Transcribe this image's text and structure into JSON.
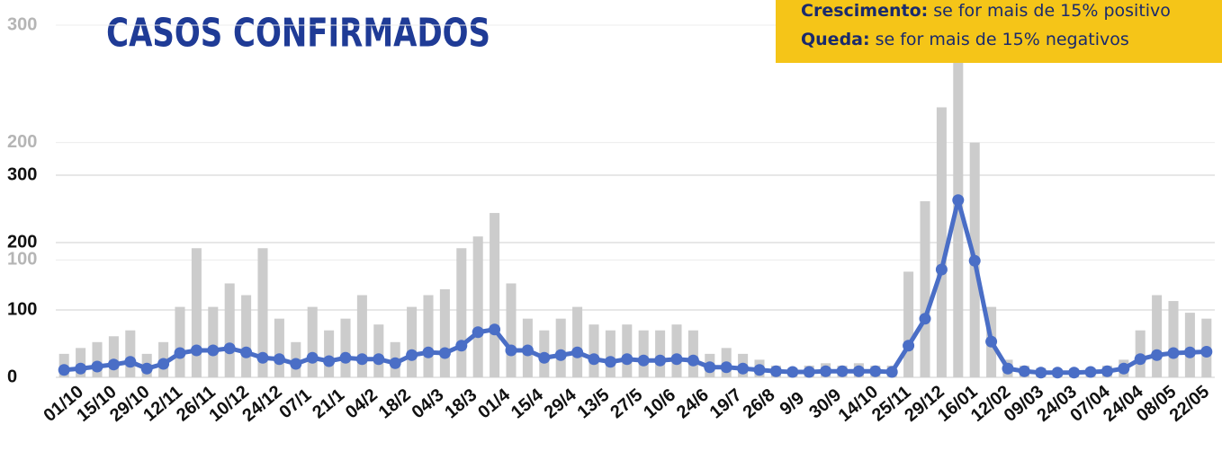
{
  "chart_data": {
    "type": "bar-line",
    "title": "CASOS CONFIRMADOS",
    "note": [
      {
        "label": "Crescimento:",
        "text": "se for mais de 15% positivo"
      },
      {
        "label": "Queda:",
        "text": "se for mais de 15% negativos"
      }
    ],
    "categories": [
      "01/10",
      null,
      "15/10",
      null,
      "29/10",
      null,
      "12/11",
      null,
      "26/11",
      null,
      "10/12",
      null,
      "24/12",
      null,
      "07/1",
      null,
      "21/1",
      null,
      "04/2",
      null,
      "18/2",
      null,
      "04/3",
      null,
      "18/3",
      null,
      "01/4",
      null,
      "15/4",
      null,
      "29/4",
      null,
      "13/5",
      null,
      "27/5",
      null,
      "10/6",
      null,
      "24/6",
      null,
      "19/7",
      null,
      "26/8",
      null,
      "9/9",
      null,
      "30/9",
      null,
      "14/10",
      null,
      "25/11",
      null,
      "29/12",
      null,
      "16/01",
      null,
      "12/02",
      null,
      "09/03",
      null,
      "24/03",
      null,
      "07/04",
      null,
      "24/04",
      null,
      "08/05",
      null,
      "22/05",
      null
    ],
    "series": [
      {
        "type": "bar",
        "axis": "y2",
        "color": "#cccccc",
        "values": [
          20,
          25,
          30,
          35,
          40,
          20,
          30,
          60,
          110,
          60,
          80,
          70,
          110,
          50,
          30,
          60,
          40,
          50,
          70,
          45,
          30,
          60,
          70,
          75,
          110,
          120,
          140,
          80,
          50,
          40,
          50,
          60,
          45,
          40,
          45,
          40,
          40,
          45,
          40,
          20,
          25,
          20,
          15,
          10,
          8,
          10,
          12,
          10,
          12,
          10,
          10,
          90,
          150,
          230,
          275,
          200,
          60,
          15,
          10,
          8,
          6,
          7,
          8,
          10,
          15,
          40,
          70,
          65,
          55,
          50
        ]
      },
      {
        "type": "line",
        "axis": "y",
        "color": "#4a6ec6",
        "values": [
          11,
          13,
          16,
          19,
          23,
          13,
          20,
          36,
          40,
          40,
          43,
          37,
          29,
          27,
          20,
          29,
          24,
          29,
          27,
          27,
          21,
          33,
          37,
          36,
          47,
          67,
          71,
          40,
          40,
          29,
          33,
          37,
          27,
          23,
          27,
          25,
          25,
          27,
          25,
          15,
          15,
          13,
          11,
          9,
          8,
          8,
          9,
          9,
          9,
          9,
          8,
          47,
          87,
          160,
          263,
          173,
          53,
          13,
          9,
          7,
          7,
          7,
          8,
          9,
          13,
          27,
          33,
          36,
          37,
          38
        ]
      }
    ],
    "ylim": [
      0,
      300
    ],
    "yticks": [
      0,
      100,
      200,
      300
    ],
    "y2lim": [
      0,
      300
    ],
    "y2ticks": [
      100,
      200,
      300
    ],
    "grid": true
  }
}
